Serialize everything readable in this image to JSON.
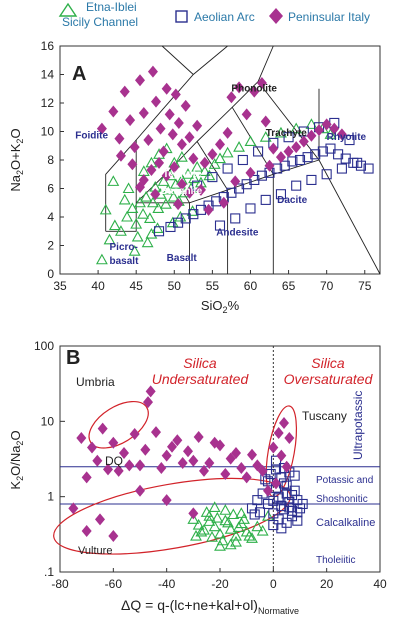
{
  "legend": {
    "items": [
      {
        "label_lines": [
          "Etna-Iblei",
          "Sicily Channel"
        ],
        "symbol": "triangle",
        "color": "#2fb04a"
      },
      {
        "label_lines": [
          "Aeolian Arc"
        ],
        "symbol": "square",
        "color": "#2b2f8f"
      },
      {
        "label_lines": [
          "Peninsular Italy"
        ],
        "symbol": "diamond",
        "color": "#a8328f"
      }
    ]
  },
  "colors": {
    "etna": "#2fb04a",
    "aeolian": "#2b2f8f",
    "peninsular": "#a8328f",
    "annotation_red": "#d2232a"
  },
  "chart_data": [
    {
      "type": "scatter",
      "panel_label": "A",
      "xlabel": "SiO 2%",
      "ylabel": "Na 2O+K 2O",
      "xlim": [
        35,
        77
      ],
      "ylim": [
        0,
        16
      ],
      "x_ticks": [
        35,
        40,
        45,
        50,
        55,
        60,
        65,
        70,
        75
      ],
      "y_ticks": [
        0,
        2,
        4,
        6,
        8,
        10,
        12,
        14,
        16
      ],
      "field_labels": [
        "Phonolite",
        "Trachyte",
        "Rhyolite",
        "Foidite",
        "Tephrite",
        "Basanite",
        "Picro-",
        "basalt",
        "Basalt",
        "Andesite",
        "Dacite"
      ],
      "field_boundaries": [
        [
          [
            41,
            3
          ],
          [
            41,
            7
          ],
          [
            45,
            9.4
          ],
          [
            48.4,
            11.5
          ],
          [
            52.5,
            14
          ],
          [
            57,
            16
          ]
        ],
        [
          [
            41,
            3
          ],
          [
            45,
            3
          ],
          [
            45,
            5
          ],
          [
            49.4,
            7.3
          ],
          [
            53,
            9.3
          ],
          [
            57.6,
            11.7
          ],
          [
            61,
            13.5
          ],
          [
            63,
            16
          ]
        ],
        [
          [
            45,
            5
          ],
          [
            52,
            5
          ],
          [
            57,
            5.9
          ],
          [
            63,
            7
          ],
          [
            69,
            8
          ]
        ],
        [
          [
            52,
            5
          ],
          [
            52,
            0
          ]
        ],
        [
          [
            57,
            5.9
          ],
          [
            57,
            0
          ]
        ],
        [
          [
            63,
            7
          ],
          [
            63,
            0
          ]
        ],
        [
          [
            69,
            8
          ],
          [
            77,
            0
          ]
        ],
        [
          [
            49.4,
            7.3
          ],
          [
            52,
            5
          ]
        ],
        [
          [
            53,
            9.3
          ],
          [
            57,
            5.9
          ]
        ],
        [
          [
            57.6,
            11.7
          ],
          [
            63,
            7
          ]
        ],
        [
          [
            61,
            13.5
          ],
          [
            69,
            8
          ],
          [
            69,
            13
          ]
        ],
        [
          [
            52.5,
            14
          ],
          [
            48.4,
            16
          ]
        ],
        [
          [
            45,
            9.4
          ],
          [
            45,
            5
          ]
        ]
      ],
      "series": [
        {
          "name": "Etna-Iblei Sicily Channel",
          "marker": "triangle",
          "x": [
            40.5,
            41.5,
            42.2,
            43.0,
            43.8,
            44.5,
            45.0,
            45.5,
            45.9,
            46.3,
            46.8,
            47.2,
            47.5,
            47.9,
            48.2,
            48.6,
            48.9,
            49.2,
            49.5,
            49.9,
            50.2,
            50.6,
            51.0,
            51.4,
            51.8,
            52.2,
            52.6,
            53.0,
            53.5,
            54.0,
            54.6,
            55.3,
            56.0,
            57.0,
            58.5,
            60.0,
            62.0,
            64.0,
            66.0,
            68.0,
            69.5,
            70.5,
            44.0,
            46.0,
            47.0,
            48.0,
            49.0,
            50.0,
            51.0,
            43.5,
            45.2,
            46.5,
            47.8,
            49.8,
            50.8,
            52.4,
            42.0,
            41.0,
            44.8,
            47.0
          ],
          "y": [
            1.0,
            2.4,
            3.4,
            3.0,
            4.0,
            4.6,
            3.5,
            5.0,
            4.2,
            5.4,
            3.9,
            5.0,
            6.1,
            4.6,
            5.6,
            6.5,
            4.9,
            5.9,
            6.9,
            5.4,
            6.3,
            5.1,
            6.6,
            5.7,
            7.0,
            6.0,
            6.7,
            7.5,
            6.4,
            7.2,
            6.9,
            7.7,
            8.1,
            8.5,
            8.9,
            9.3,
            9.6,
            9.9,
            10.2,
            10.5,
            10.2,
            9.8,
            6.0,
            7.2,
            7.8,
            8.4,
            8.8,
            7.8,
            8.2,
            5.2,
            2.6,
            2.2,
            3.2,
            3.6,
            4.0,
            4.4,
            6.5,
            4.5,
            1.6,
            2.8
          ]
        },
        {
          "name": "Aeolian Arc",
          "marker": "square",
          "x": [
            48.0,
            49.5,
            50.5,
            51.5,
            52.5,
            53.5,
            54.5,
            55.5,
            56.5,
            57.5,
            58.5,
            59.5,
            60.5,
            61.5,
            62.5,
            63.5,
            64.5,
            65.5,
            66.5,
            67.5,
            68.5,
            69.5,
            70.5,
            71.5,
            72.5,
            73.5,
            74.5,
            75.5,
            53.0,
            55.0,
            57.0,
            59.0,
            61.0,
            63.0,
            65.0,
            67.0,
            69.0,
            71.0,
            73.0,
            60.0,
            62.0,
            64.0,
            66.0,
            68.0,
            70.0,
            72.0,
            74.0,
            56.0,
            58.0
          ],
          "y": [
            3.0,
            3.3,
            3.6,
            3.9,
            4.2,
            4.5,
            4.8,
            5.1,
            5.4,
            5.7,
            6.0,
            6.3,
            6.6,
            6.9,
            7.1,
            7.4,
            7.6,
            7.9,
            8.0,
            8.2,
            8.4,
            8.6,
            8.8,
            8.4,
            8.1,
            7.8,
            7.6,
            7.4,
            6.2,
            6.8,
            7.4,
            8.0,
            8.6,
            9.2,
            9.6,
            10.0,
            10.3,
            10.6,
            9.4,
            4.6,
            5.2,
            5.6,
            6.2,
            6.6,
            7.0,
            7.4,
            7.8,
            3.4,
            3.9
          ]
        },
        {
          "name": "Peninsular Italy",
          "marker": "diamond",
          "x": [
            40.5,
            42.0,
            42.8,
            43.5,
            44.2,
            44.8,
            45.5,
            46.0,
            46.6,
            47.2,
            47.6,
            48.2,
            48.6,
            49.0,
            49.4,
            49.8,
            50.2,
            50.6,
            51.0,
            51.5,
            52.0,
            52.5,
            53.0,
            54.0,
            55.0,
            56.0,
            57.0,
            57.5,
            58.5,
            59.5,
            60.5,
            61.5,
            62.0,
            63.0,
            64.0,
            65.0,
            66.0,
            67.0,
            68.0,
            69.0,
            70.0,
            71.0,
            72.0,
            46.0,
            47.0,
            48.0,
            49.0,
            50.0,
            51.0,
            52.0,
            44.5,
            43.0,
            45.5,
            47.5,
            50.5,
            53.5,
            58.0,
            60.0,
            62.5,
            54.5,
            56.5
          ],
          "y": [
            10.2,
            11.4,
            9.5,
            12.8,
            10.8,
            8.9,
            13.6,
            11.3,
            9.4,
            14.2,
            12.1,
            10.2,
            8.6,
            13.0,
            11.2,
            9.8,
            12.6,
            10.6,
            9.1,
            11.8,
            9.6,
            8.1,
            10.4,
            7.8,
            8.4,
            9.1,
            9.9,
            12.4,
            13.1,
            11.2,
            12.8,
            13.4,
            10.7,
            8.8,
            8.2,
            8.6,
            8.9,
            9.3,
            9.7,
            10.1,
            10.5,
            10.2,
            9.8,
            6.6,
            7.3,
            7.8,
            6.9,
            7.5,
            6.3,
            5.7,
            7.7,
            8.3,
            6.1,
            5.6,
            4.9,
            5.9,
            6.5,
            7.1,
            7.6,
            4.5,
            5.0
          ]
        }
      ]
    },
    {
      "type": "scatter",
      "panel_label": "B",
      "xlabel": "ΔQ = q-(lc+ne+kal+ol)Normative",
      "ylabel": "K 2O/Na 2O",
      "xlim": [
        -80,
        40
      ],
      "ylim": [
        0.1,
        100
      ],
      "yscale": "log",
      "x_ticks": [
        -80,
        -60,
        -40,
        -20,
        0,
        20,
        40
      ],
      "y_ticks": [
        0.1,
        1,
        10,
        100
      ],
      "y_tick_labels": [
        ".1",
        "1",
        "10",
        "100"
      ],
      "annotations": {
        "undersaturated": [
          "Silica",
          "Undersaturated"
        ],
        "oversaturated": [
          "Silica",
          "Oversaturated"
        ],
        "umbria": "Umbria",
        "tuscany": "Tuscany",
        "dq": "DQ",
        "vulture": "Vulture",
        "ultrapotassic": "Ultrapotassic",
        "potassic": "Potassic and",
        "shoshonitic": "Shoshonitic",
        "calcalkaline": "Calcalkaline",
        "tholeiitic": "Tholeiitic"
      },
      "reference_lines": {
        "horizontal_y": [
          2.5,
          0.8
        ],
        "vertical_x": 0
      },
      "series": [
        {
          "name": "Etna-Iblei Sicily Channel",
          "marker": "triangle",
          "x": [
            -30,
            -28,
            -26,
            -24,
            -22,
            -20,
            -18,
            -16,
            -14,
            -12,
            -10,
            -8,
            -25,
            -21,
            -17,
            -13,
            -9,
            -27,
            -23,
            -19,
            -15,
            -11,
            -29,
            -20,
            -14,
            -18,
            -22,
            -12,
            -16,
            -24,
            -2,
            -6,
            -4
          ],
          "y": [
            0.5,
            0.42,
            0.36,
            0.55,
            0.4,
            0.32,
            0.48,
            0.37,
            0.3,
            0.44,
            0.34,
            0.28,
            0.62,
            0.52,
            0.45,
            0.39,
            0.3,
            0.34,
            0.29,
            0.26,
            0.58,
            0.5,
            0.3,
            0.22,
            0.25,
            0.66,
            0.72,
            0.6,
            0.23,
            0.47,
            0.55,
            0.4,
            0.35
          ]
        },
        {
          "name": "Aeolian Arc",
          "marker": "square",
          "x": [
            -8,
            -6,
            -4,
            -2,
            0,
            1,
            2,
            3,
            4,
            5,
            6,
            7,
            8,
            9,
            10,
            -3,
            -1,
            1,
            3,
            5,
            7,
            9,
            0,
            2,
            4,
            6,
            8,
            -5,
            -7,
            3,
            5,
            1,
            -2,
            4,
            6,
            2,
            0,
            7,
            9,
            11
          ],
          "y": [
            0.7,
            0.9,
            1.1,
            0.8,
            0.6,
            1.3,
            0.95,
            0.75,
            1.5,
            1.1,
            0.85,
            0.65,
            1.2,
            0.9,
            0.7,
            1.7,
            2.0,
            2.3,
            1.8,
            1.4,
            0.55,
            0.48,
            0.42,
            0.5,
            2.4,
            2.1,
            1.9,
            0.62,
            0.58,
            0.38,
            0.45,
            3.0,
            1.6,
            0.68,
            0.72,
            1.0,
            0.88,
            1.05,
            0.62,
            0.8
          ]
        },
        {
          "name": "Peninsular Italy",
          "marker": "diamond",
          "x": [
            -72,
            -68,
            -64,
            -60,
            -56,
            -52,
            -48,
            -44,
            -40,
            -36,
            -32,
            -28,
            -24,
            -20,
            -16,
            -12,
            -8,
            -4,
            -58,
            -50,
            -42,
            -34,
            -26,
            -18,
            -10,
            -46,
            -38,
            -30,
            -22,
            -14,
            -6,
            -66,
            -54,
            -62,
            -47,
            -70,
            -75,
            -70,
            -65,
            -60,
            -50,
            -40,
            -30,
            0,
            2,
            4,
            6,
            3,
            5,
            1,
            -2
          ],
          "y": [
            6,
            4.5,
            8,
            5.2,
            3.8,
            6.8,
            4.2,
            7.2,
            3.5,
            5.6,
            4.0,
            6.2,
            2.8,
            4.8,
            3.2,
            2.4,
            3.6,
            2.2,
            2.2,
            2.6,
            2.4,
            2.8,
            2.2,
            2.0,
            1.8,
            25,
            4.6,
            3.0,
            5.2,
            3.8,
            2.6,
            3.0,
            2.6,
            2.3,
            18,
            1.8,
            0.7,
            0.35,
            0.5,
            0.3,
            1.2,
            0.9,
            0.6,
            4.5,
            7,
            9.5,
            6,
            3.5,
            2.5,
            1.5,
            1.2
          ]
        }
      ]
    }
  ]
}
